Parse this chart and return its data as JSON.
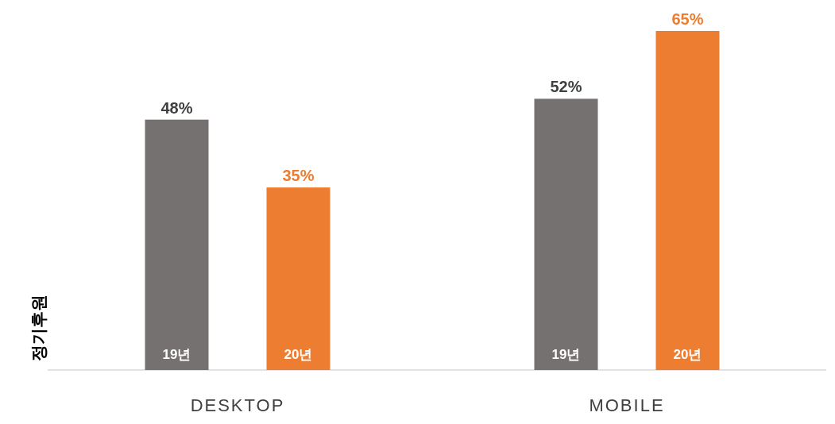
{
  "chart_data": {
    "type": "bar",
    "ylabel": "정기후원",
    "categories": [
      "DESKTOP",
      "MOBILE"
    ],
    "series": [
      {
        "name": "19년",
        "color": "#767171",
        "values": [
          48,
          52
        ],
        "value_labels": [
          "48%",
          "52%"
        ]
      },
      {
        "name": "20년",
        "color": "#ed7d31",
        "values": [
          35,
          65
        ],
        "value_labels": [
          "35%",
          "65%"
        ]
      }
    ]
  }
}
